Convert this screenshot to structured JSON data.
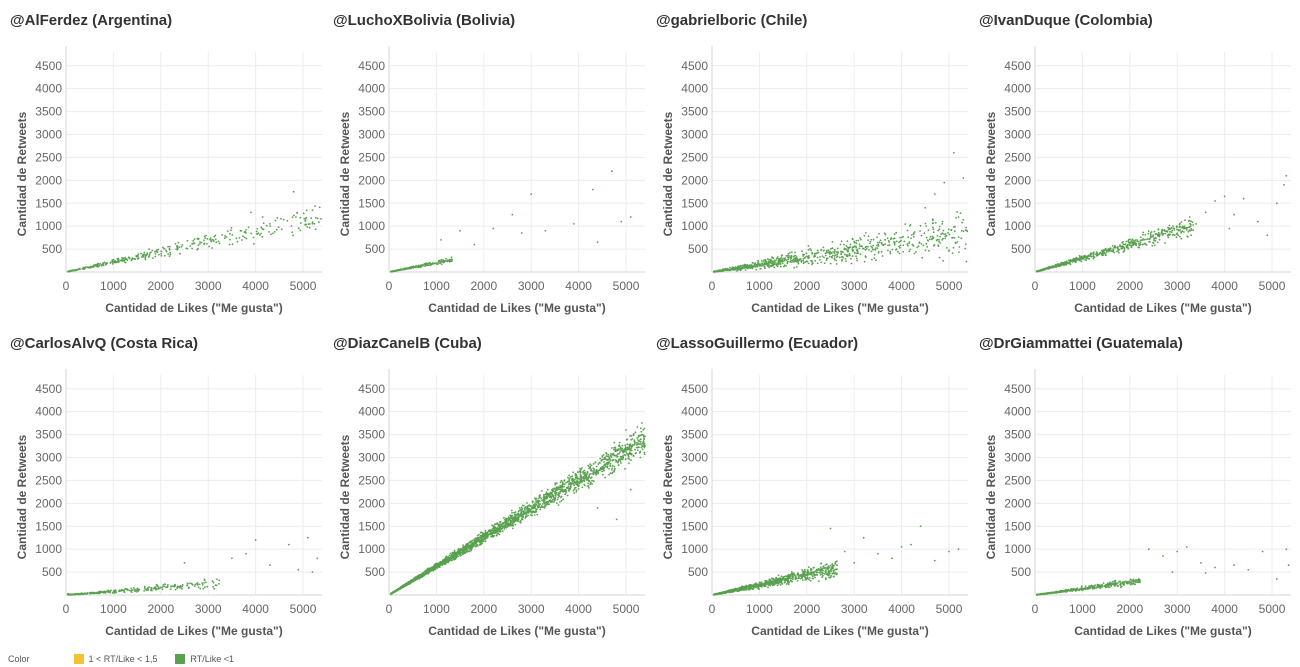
{
  "legend": {
    "title": "Color",
    "items": [
      {
        "label": "1 < RT/Like < 1,5",
        "color": "#f2c230"
      },
      {
        "label": "RT/Like <1",
        "color": "#59a14f"
      }
    ]
  },
  "chart_data": [
    {
      "type": "scatter",
      "title": "@AlFerdez (Argentina)",
      "xlabel": "Cantidad de Likes (\"Me gusta\")",
      "ylabel": "Cantidad de Retweets",
      "xlim": [
        0,
        5400
      ],
      "ylim": [
        0,
        4800
      ],
      "xticks": [
        0,
        1000,
        2000,
        3000,
        4000,
        5000
      ],
      "yticks": [
        500,
        1000,
        1500,
        2000,
        2500,
        3000,
        3500,
        4000,
        4500
      ],
      "grid": true,
      "series": [
        {
          "color": "#59a14f",
          "seed": 11,
          "n": 380,
          "slope": 0.22,
          "jitter": 0.35,
          "xmax": 5400,
          "points": [
            [
              3900,
              1300
            ],
            [
              4300,
              1050
            ],
            [
              4800,
              1750
            ],
            [
              5200,
              1350
            ],
            [
              4150,
              1200
            ],
            [
              3700,
              900
            ]
          ]
        }
      ]
    },
    {
      "type": "scatter",
      "title": "@LuchoXBolivia (Bolivia)",
      "xlabel": "Cantidad de Likes (\"Me gusta\")",
      "ylabel": "Cantidad de Retweets",
      "xlim": [
        0,
        5400
      ],
      "ylim": [
        0,
        4800
      ],
      "xticks": [
        0,
        1000,
        2000,
        3000,
        4000,
        5000
      ],
      "yticks": [
        500,
        1000,
        1500,
        2000,
        2500,
        3000,
        3500,
        4000,
        4500
      ],
      "grid": true,
      "series": [
        {
          "color": "#59a14f",
          "seed": 23,
          "n": 260,
          "slope": 0.2,
          "jitter": 0.3,
          "xmax": 1300,
          "points": [
            [
              1100,
              700
            ],
            [
              1500,
              900
            ],
            [
              2200,
              950
            ],
            [
              2600,
              1250
            ],
            [
              3000,
              1700
            ],
            [
              3300,
              900
            ],
            [
              3900,
              1050
            ],
            [
              4300,
              1800
            ],
            [
              4400,
              650
            ],
            [
              4700,
              2200
            ],
            [
              4900,
              1100
            ],
            [
              5100,
              1200
            ],
            [
              2800,
              850
            ],
            [
              1800,
              600
            ]
          ]
        }
      ]
    },
    {
      "type": "scatter",
      "title": "@gabrielboric (Chile)",
      "xlabel": "Cantidad de Likes (\"Me gusta\")",
      "ylabel": "Cantidad de Retweets",
      "xlim": [
        0,
        5400
      ],
      "ylim": [
        0,
        4800
      ],
      "xticks": [
        0,
        1000,
        2000,
        3000,
        4000,
        5000
      ],
      "yticks": [
        500,
        1000,
        1500,
        2000,
        2500,
        3000,
        3500,
        4000,
        4500
      ],
      "grid": true,
      "series": [
        {
          "color": "#59a14f",
          "seed": 37,
          "n": 900,
          "slope": 0.16,
          "jitter": 0.8,
          "xmax": 5400,
          "points": [
            [
              5100,
              2600
            ],
            [
              5300,
              2050
            ],
            [
              4900,
              1950
            ],
            [
              4700,
              1700
            ],
            [
              5200,
              1200
            ],
            [
              4500,
              1400
            ]
          ]
        }
      ]
    },
    {
      "type": "scatter",
      "title": "@IvanDuque (Colombia)",
      "xlabel": "Cantidad de Likes (\"Me gusta\")",
      "ylabel": "Cantidad de Retweets",
      "xlim": [
        0,
        5400
      ],
      "ylim": [
        0,
        4800
      ],
      "xticks": [
        0,
        1000,
        2000,
        3000,
        4000,
        5000
      ],
      "yticks": [
        500,
        1000,
        1500,
        2000,
        2500,
        3000,
        3500,
        4000,
        4500
      ],
      "grid": true,
      "series": [
        {
          "color": "#59a14f",
          "seed": 41,
          "n": 700,
          "slope": 0.3,
          "jitter": 0.3,
          "xmax": 3300,
          "points": [
            [
              3600,
              1300
            ],
            [
              3800,
              1550
            ],
            [
              4000,
              1650
            ],
            [
              4200,
              1250
            ],
            [
              4400,
              1600
            ],
            [
              4700,
              1100
            ],
            [
              4900,
              800
            ],
            [
              5100,
              1500
            ],
            [
              5300,
              2100
            ],
            [
              5250,
              1900
            ],
            [
              3400,
              1050
            ],
            [
              4100,
              950
            ]
          ]
        }
      ]
    },
    {
      "type": "scatter",
      "title": "@CarlosAlvQ (Costa Rica)",
      "xlabel": "Cantidad de Likes (\"Me gusta\")",
      "ylabel": "Cantidad de Retweets",
      "xlim": [
        0,
        5400
      ],
      "ylim": [
        0,
        4800
      ],
      "xticks": [
        0,
        1000,
        2000,
        3000,
        4000,
        5000
      ],
      "yticks": [
        500,
        1000,
        1500,
        2000,
        2500,
        3000,
        3500,
        4000,
        4500
      ],
      "grid": true,
      "series": [
        {
          "color": "#59a14f",
          "seed": 53,
          "n": 320,
          "slope": 0.08,
          "jitter": 0.6,
          "xmax": 3200,
          "points": [
            [
              3500,
              800
            ],
            [
              3800,
              900
            ],
            [
              4000,
              1200
            ],
            [
              4300,
              650
            ],
            [
              4700,
              1100
            ],
            [
              4900,
              550
            ],
            [
              5100,
              1250
            ],
            [
              5300,
              800
            ],
            [
              5200,
              500
            ],
            [
              2500,
              700
            ]
          ]
        }
      ]
    },
    {
      "type": "scatter",
      "title": "@DiazCanelB (Cuba)",
      "xlabel": "Cantidad de Likes (\"Me gusta\")",
      "ylabel": "Cantidad de Retweets",
      "xlim": [
        0,
        5400
      ],
      "ylim": [
        0,
        4800
      ],
      "xticks": [
        0,
        1000,
        2000,
        3000,
        4000,
        5000
      ],
      "yticks": [
        500,
        1000,
        1500,
        2000,
        2500,
        3000,
        3500,
        4000,
        4500
      ],
      "grid": true,
      "series": [
        {
          "color": "#59a14f",
          "seed": 67,
          "n": 2600,
          "slope": 0.63,
          "jitter": 0.14,
          "xmax": 5400,
          "points": [
            [
              5000,
              3600
            ],
            [
              5200,
              3550
            ],
            [
              4800,
              1650
            ],
            [
              5100,
              2300
            ],
            [
              4400,
              1900
            ],
            [
              5300,
              3000
            ]
          ]
        }
      ]
    },
    {
      "type": "scatter",
      "title": "@LassoGuillermo (Ecuador)",
      "xlabel": "Cantidad de Likes (\"Me gusta\")",
      "ylabel": "Cantidad de Retweets",
      "xlim": [
        0,
        5400
      ],
      "ylim": [
        0,
        4800
      ],
      "xticks": [
        0,
        1000,
        2000,
        3000,
        4000,
        5000
      ],
      "yticks": [
        500,
        1000,
        1500,
        2000,
        2500,
        3000,
        3500,
        4000,
        4500
      ],
      "grid": true,
      "series": [
        {
          "color": "#59a14f",
          "seed": 71,
          "n": 900,
          "slope": 0.22,
          "jitter": 0.45,
          "xmax": 2600,
          "points": [
            [
              2500,
              1450
            ],
            [
              3200,
              1250
            ],
            [
              3500,
              900
            ],
            [
              3800,
              800
            ],
            [
              4000,
              1050
            ],
            [
              4400,
              1500
            ],
            [
              4700,
              750
            ],
            [
              5000,
              950
            ],
            [
              5200,
              1000
            ],
            [
              4200,
              1100
            ],
            [
              3000,
              700
            ],
            [
              2800,
              950
            ]
          ]
        }
      ]
    },
    {
      "type": "scatter",
      "title": "@DrGiammattei (Guatemala)",
      "xlabel": "Cantidad de Likes (\"Me gusta\")",
      "ylabel": "Cantidad de Retweets",
      "xlim": [
        0,
        5400
      ],
      "ylim": [
        0,
        4800
      ],
      "xticks": [
        0,
        1000,
        2000,
        3000,
        4000,
        5000
      ],
      "yticks": [
        500,
        1000,
        1500,
        2000,
        2500,
        3000,
        3500,
        4000,
        4500
      ],
      "grid": true,
      "series": [
        {
          "color": "#59a14f",
          "seed": 83,
          "n": 420,
          "slope": 0.14,
          "jitter": 0.4,
          "xmax": 2200,
          "points": [
            [
              2400,
              1000
            ],
            [
              2700,
              850
            ],
            [
              3000,
              950
            ],
            [
              3200,
              1050
            ],
            [
              3500,
              700
            ],
            [
              3800,
              600
            ],
            [
              4200,
              650
            ],
            [
              4500,
              550
            ],
            [
              4800,
              950
            ],
            [
              5100,
              350
            ],
            [
              5300,
              1000
            ],
            [
              5350,
              650
            ],
            [
              2900,
              500
            ],
            [
              3600,
              480
            ]
          ]
        }
      ]
    }
  ]
}
